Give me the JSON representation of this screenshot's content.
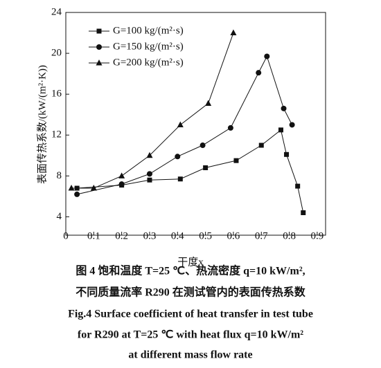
{
  "chart_data": {
    "type": "line",
    "xlabel": "干度x",
    "ylabel": "表面传热系数/(kW/(m²·K))",
    "xlim": [
      0,
      0.93
    ],
    "ylim": [
      2.2,
      24
    ],
    "xticks": [
      0,
      0.1,
      0.2,
      0.3,
      0.4,
      0.5,
      0.6,
      0.7,
      0.8,
      0.9
    ],
    "yticks": [
      4,
      8,
      12,
      16,
      20,
      24
    ],
    "legend": "upper left",
    "series": [
      {
        "name": "G=100 kg/(m²·s)",
        "marker": "square",
        "color": "#111111",
        "x": [
          0.04,
          0.2,
          0.3,
          0.41,
          0.5,
          0.61,
          0.7,
          0.77,
          0.79,
          0.83,
          0.85
        ],
        "values": [
          6.8,
          7.1,
          7.6,
          7.7,
          8.8,
          9.5,
          11.0,
          12.5,
          10.1,
          7.0,
          4.4
        ]
      },
      {
        "name": "G=150 kg/(m²·s)",
        "marker": "circle",
        "color": "#111111",
        "x": [
          0.04,
          0.2,
          0.3,
          0.4,
          0.49,
          0.59,
          0.69,
          0.72,
          0.78,
          0.81
        ],
        "values": [
          6.2,
          7.2,
          8.2,
          9.9,
          11.0,
          12.7,
          18.1,
          19.7,
          14.6,
          13.0
        ]
      },
      {
        "name": "G=200 kg/(m²·s)",
        "marker": "triangle",
        "color": "#111111",
        "x": [
          0.02,
          0.1,
          0.2,
          0.3,
          0.41,
          0.51,
          0.6
        ],
        "values": [
          6.8,
          6.8,
          8.0,
          10.0,
          13.0,
          15.1,
          22.0
        ]
      }
    ]
  },
  "caption": {
    "lines": [
      "图 4 饱和温度 T=25 ℃、热流密度 q=10 kW/m²,",
      "不同质量流率 R290 在测试管内的表面传热系数",
      "Fig.4 Surface coefficient of heat transfer in test tube",
      "for R290 at T=25 ℃ with heat flux q=10 kW/m²",
      "at different mass flow rate"
    ]
  }
}
